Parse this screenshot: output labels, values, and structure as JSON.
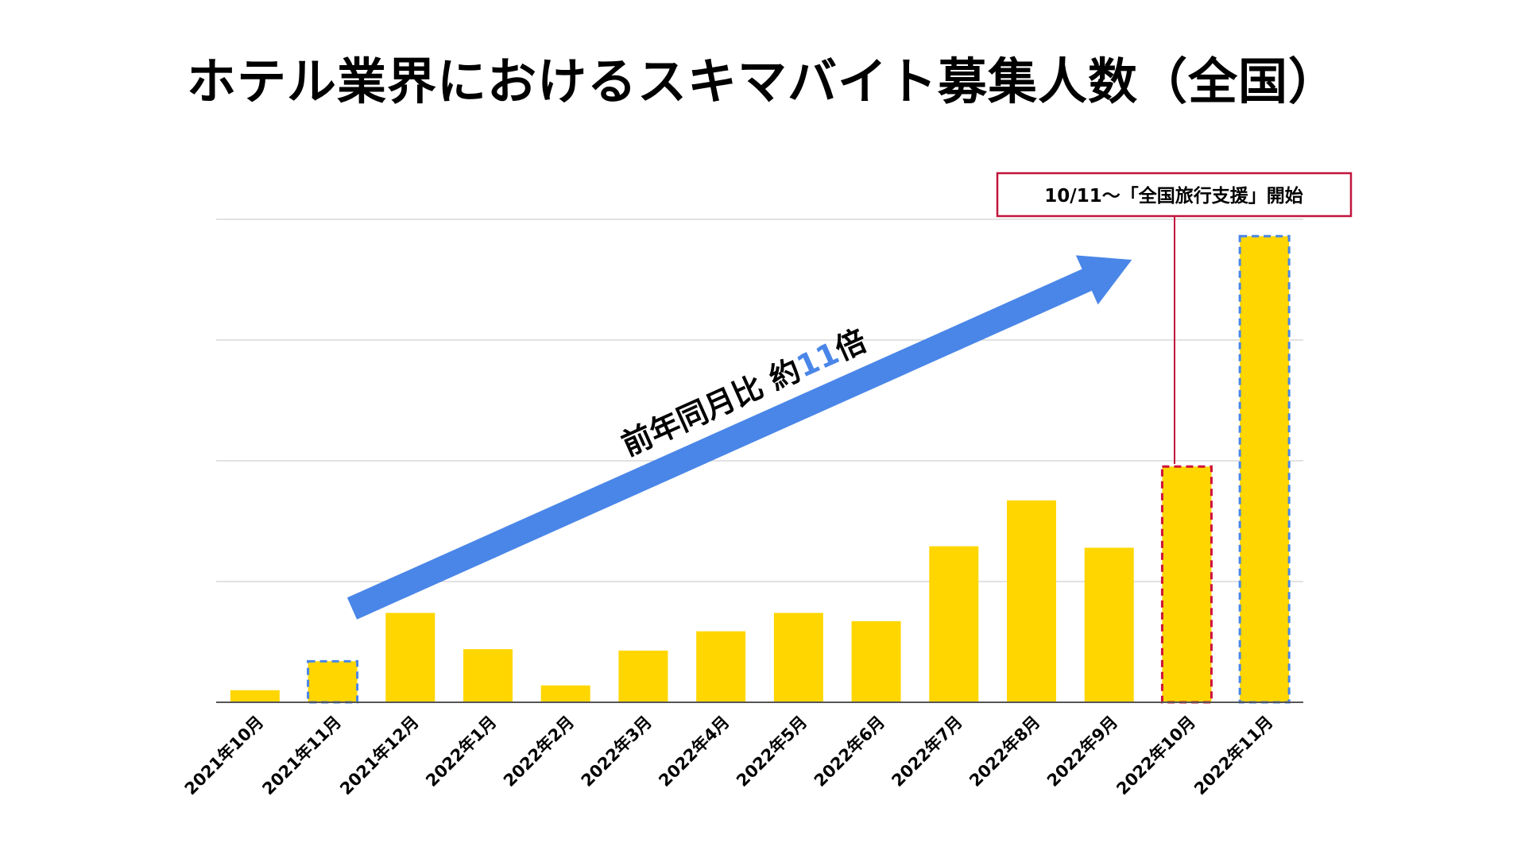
{
  "title": "ホテル業界におけるスキマバイト募集人数（全国）",
  "colors": {
    "bar": "#ffd600",
    "grid": "#d9d9d9",
    "axis": "#555555",
    "arrow": "#4a86e8",
    "highlight_prev": "#4a86e8",
    "highlight_event": "#d0103a",
    "callout_border": "#c0143c"
  },
  "annotation": {
    "arrow_label_prefix": "前年同月比 約",
    "arrow_label_number": "11",
    "arrow_label_suffix": "倍",
    "callout_text": "10/11～「全国旅行支援」開始"
  },
  "chart_data": {
    "type": "bar",
    "title": "ホテル業界におけるスキマバイト募集人数（全国）",
    "xlabel": "",
    "ylabel": "",
    "categories": [
      "2021年10月",
      "2021年11月",
      "2021年12月",
      "2022年1月",
      "2022年2月",
      "2022年3月",
      "2022年4月",
      "2022年5月",
      "2022年6月",
      "2022年7月",
      "2022年8月",
      "2022年9月",
      "2022年10月",
      "2022年11月"
    ],
    "values": [
      0.25,
      0.85,
      1.85,
      1.1,
      0.35,
      1.07,
      1.47,
      1.85,
      1.68,
      3.23,
      4.18,
      3.2,
      4.88,
      9.65
    ],
    "ylim": [
      0,
      10
    ],
    "gridlines": [
      2.5,
      5,
      7.5,
      10
    ],
    "y_tick_labels_shown": false,
    "grid": true,
    "highlighted": [
      {
        "category": "2021年11月",
        "style": "dashed",
        "color": "#4a86e8"
      },
      {
        "category": "2022年10月",
        "style": "dashed",
        "color": "#d0103a"
      },
      {
        "category": "2022年11月",
        "style": "dashed",
        "color": "#4a86e8"
      }
    ]
  }
}
